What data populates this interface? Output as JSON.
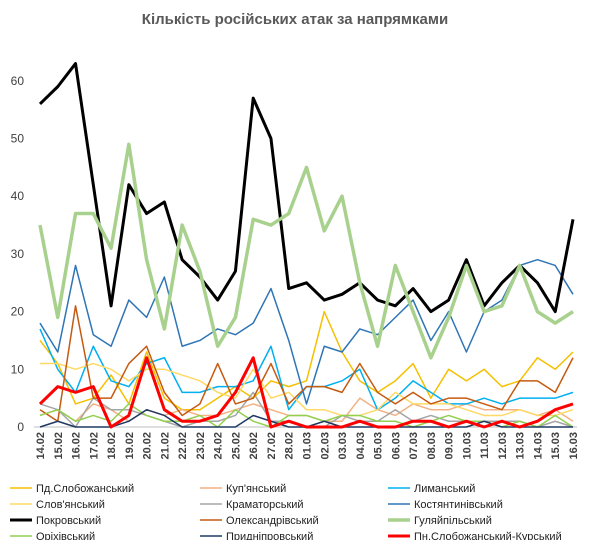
{
  "chart_data": {
    "type": "line",
    "title": "Кількість російських атак за напрямками",
    "categories": [
      "14.02",
      "15.02",
      "16.02",
      "17.02",
      "18.02",
      "19.02",
      "20.02",
      "21.02",
      "22.02",
      "23.02",
      "24.02",
      "25.02",
      "26.02",
      "27.02",
      "28.02",
      "01.03",
      "02.03",
      "03.03",
      "04.03",
      "05.03",
      "06.03",
      "07.03",
      "08.03",
      "09.03",
      "10.03",
      "11.03",
      "12.03",
      "13.03",
      "14.03",
      "15.03",
      "16.03"
    ],
    "ylim": [
      0,
      65
    ],
    "yticks": [
      0,
      10,
      20,
      30,
      40,
      50,
      60
    ],
    "grid": false,
    "series": [
      {
        "name": "Пд.Слобожанський",
        "color": "#f5c000",
        "width": 1.5,
        "values": [
          15,
          11,
          4,
          5,
          9,
          4,
          13,
          5,
          3,
          3,
          5,
          7,
          5,
          8,
          7,
          8,
          20,
          13,
          8,
          6,
          8,
          11,
          5,
          10,
          8,
          10,
          7,
          8,
          12,
          10,
          13
        ]
      },
      {
        "name": "Куп'янський",
        "color": "#f4b183",
        "width": 1.5,
        "values": [
          2,
          3,
          1,
          4,
          3,
          1,
          3,
          2,
          3,
          2,
          2,
          3,
          4,
          3,
          2,
          2,
          1,
          1,
          5,
          3,
          2,
          4,
          3,
          3,
          4,
          3,
          3,
          3,
          2,
          3,
          1
        ]
      },
      {
        "name": "Лиманський",
        "color": "#00b0f0",
        "width": 1.5,
        "values": [
          17,
          10,
          6,
          14,
          8,
          7,
          11,
          12,
          6,
          6,
          7,
          7,
          8,
          14,
          3,
          7,
          7,
          8,
          10,
          3,
          5,
          8,
          6,
          4,
          4,
          5,
          4,
          5,
          5,
          5,
          6
        ]
      },
      {
        "name": "Слов'янський",
        "color": "#ffd966",
        "width": 1.5,
        "values": [
          11,
          11,
          10,
          11,
          10,
          8,
          10,
          10,
          9,
          8,
          6,
          5,
          10,
          5,
          6,
          3,
          3,
          2,
          2,
          3,
          6,
          4,
          4,
          4,
          3,
          2,
          2,
          3,
          2,
          2,
          3
        ]
      },
      {
        "name": "Краматорський",
        "color": "#a5a5a5",
        "width": 1.5,
        "values": [
          4,
          3,
          0,
          5,
          3,
          3,
          2,
          1,
          0,
          1,
          1,
          2,
          6,
          1,
          1,
          0,
          0,
          2,
          1,
          1,
          3,
          1,
          2,
          1,
          1,
          1,
          1,
          1,
          0,
          1,
          0
        ]
      },
      {
        "name": "Костянтинівський",
        "color": "#2e75b6",
        "width": 1.5,
        "values": [
          18,
          13,
          28,
          16,
          14,
          22,
          19,
          26,
          14,
          15,
          17,
          16,
          18,
          24,
          15,
          4,
          14,
          13,
          17,
          16,
          19,
          22,
          15,
          20,
          13,
          20,
          22,
          28,
          29,
          28,
          23
        ]
      },
      {
        "name": "Покровський",
        "color": "#000000",
        "width": 3,
        "values": [
          56,
          59,
          63,
          42,
          21,
          42,
          37,
          39,
          29,
          26,
          22,
          27,
          57,
          50,
          24,
          25,
          22,
          23,
          25,
          22,
          21,
          24,
          20,
          22,
          29,
          21,
          25,
          28,
          25,
          20,
          36
        ]
      },
      {
        "name": "Олександрівський",
        "color": "#c55a11",
        "width": 1.5,
        "values": [
          3,
          1,
          21,
          5,
          5,
          11,
          14,
          6,
          2,
          4,
          11,
          4,
          5,
          11,
          4,
          7,
          7,
          6,
          11,
          6,
          4,
          6,
          4,
          5,
          5,
          4,
          3,
          8,
          8,
          6,
          12
        ]
      },
      {
        "name": "Гуляйпільський",
        "color": "#a9d18e",
        "width": 3.5,
        "values": [
          35,
          19,
          37,
          37,
          31,
          49,
          29,
          17,
          35,
          27,
          14,
          19,
          36,
          35,
          37,
          45,
          34,
          40,
          25,
          14,
          28,
          20,
          12,
          19,
          28,
          20,
          21,
          28,
          20,
          18,
          20
        ]
      },
      {
        "name": "Оріхівський",
        "color": "#92d050",
        "width": 1.5,
        "values": [
          2,
          3,
          1,
          2,
          1,
          4,
          2,
          1,
          1,
          2,
          0,
          3,
          1,
          0,
          2,
          2,
          1,
          2,
          2,
          1,
          1,
          0,
          1,
          2,
          1,
          1,
          0,
          1,
          0,
          2,
          0
        ]
      },
      {
        "name": "Придніпровський",
        "color": "#1f3864",
        "width": 1.5,
        "values": [
          0,
          1,
          0,
          0,
          0,
          1,
          3,
          2,
          0,
          0,
          0,
          0,
          2,
          1,
          0,
          0,
          1,
          0,
          0,
          0,
          0,
          0,
          0,
          0,
          0,
          1,
          0,
          0,
          0,
          0,
          0
        ]
      },
      {
        "name": "Пн.Слобожанський-Курський",
        "color": "#ff0000",
        "width": 3,
        "values": [
          4,
          7,
          6,
          7,
          0,
          2,
          12,
          3,
          1,
          1,
          2,
          6,
          12,
          0,
          1,
          0,
          0,
          0,
          1,
          0,
          0,
          1,
          1,
          0,
          1,
          0,
          1,
          0,
          1,
          3,
          4
        ]
      }
    ]
  }
}
